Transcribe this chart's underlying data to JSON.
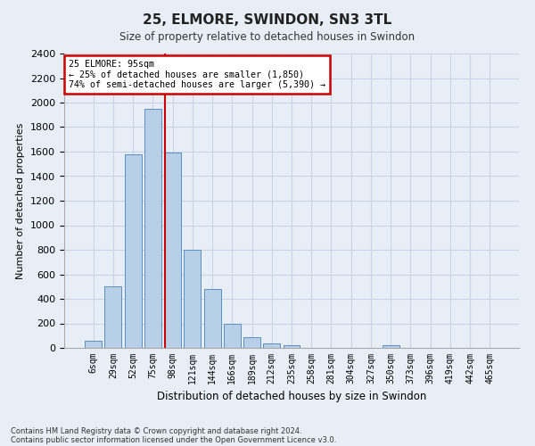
{
  "title": "25, ELMORE, SWINDON, SN3 3TL",
  "subtitle": "Size of property relative to detached houses in Swindon",
  "xlabel": "Distribution of detached houses by size in Swindon",
  "ylabel": "Number of detached properties",
  "footer1": "Contains HM Land Registry data © Crown copyright and database right 2024.",
  "footer2": "Contains public sector information licensed under the Open Government Licence v3.0.",
  "categories": [
    "6sqm",
    "29sqm",
    "52sqm",
    "75sqm",
    "98sqm",
    "121sqm",
    "144sqm",
    "166sqm",
    "189sqm",
    "212sqm",
    "235sqm",
    "258sqm",
    "281sqm",
    "304sqm",
    "327sqm",
    "350sqm",
    "373sqm",
    "396sqm",
    "419sqm",
    "442sqm",
    "465sqm"
  ],
  "values": [
    55,
    500,
    1580,
    1950,
    1590,
    800,
    480,
    195,
    90,
    35,
    25,
    0,
    0,
    0,
    0,
    20,
    0,
    0,
    0,
    0,
    0
  ],
  "bar_color": "#b8cfe8",
  "bar_edge_color": "#5a8fc0",
  "grid_color": "#c8d4e4",
  "background_color": "#e8eef6",
  "annotation_title": "25 ELMORE: 95sqm",
  "annotation_line1": "← 25% of detached houses are smaller (1,850)",
  "annotation_line2": "74% of semi-detached houses are larger (5,390) →",
  "annotation_box_color": "#ffffff",
  "annotation_border_color": "#cc0000",
  "vline_color": "#cc0000",
  "vline_x_index": 3.6,
  "ylim": [
    0,
    2400
  ],
  "yticks": [
    0,
    200,
    400,
    600,
    800,
    1000,
    1200,
    1400,
    1600,
    1800,
    2000,
    2200,
    2400
  ]
}
